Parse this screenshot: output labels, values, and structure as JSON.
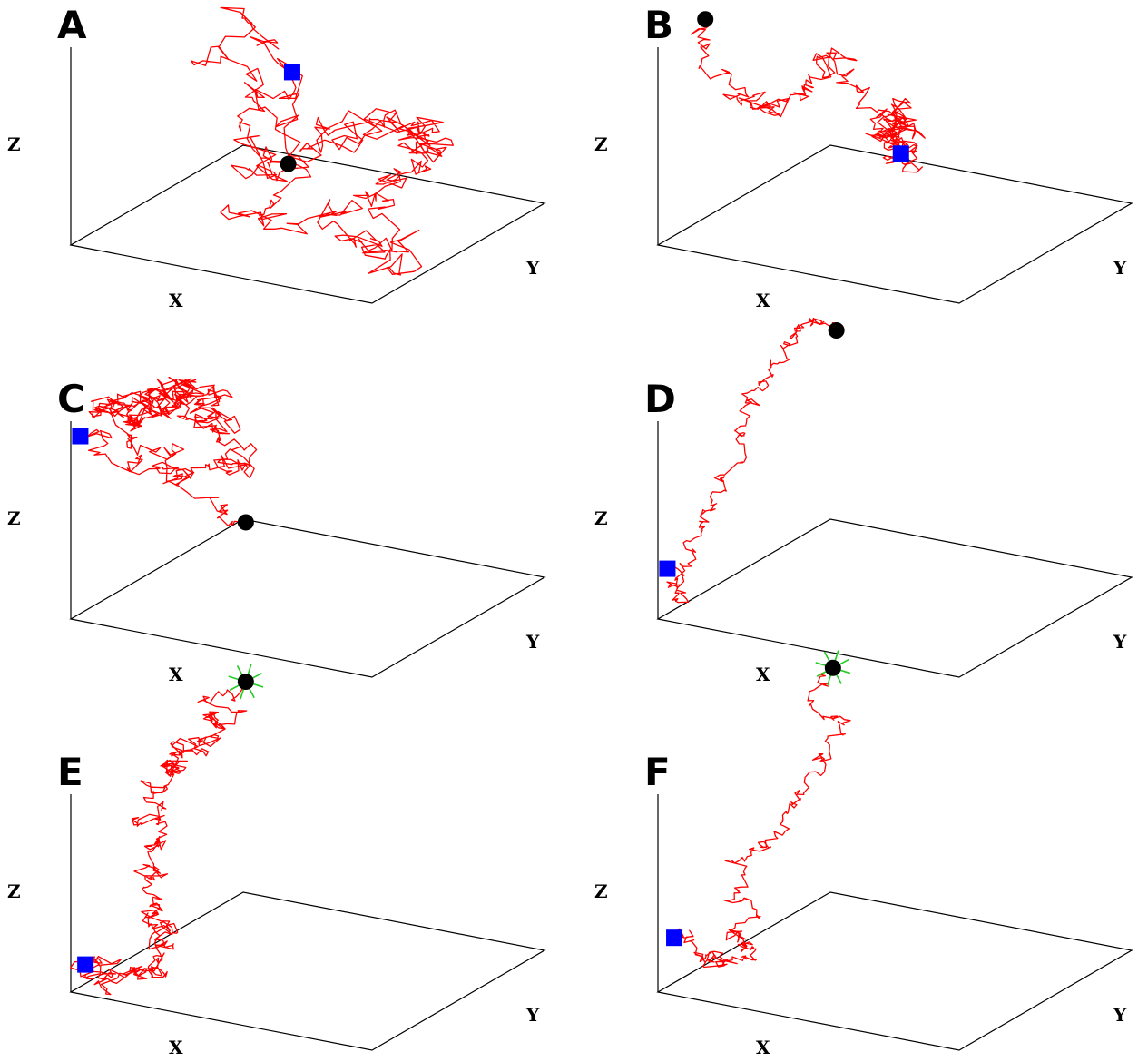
{
  "axes": {
    "x": "X",
    "y": "Y",
    "z": "Z"
  },
  "chart_data": {
    "type": "line",
    "projection": "3d",
    "title": "",
    "panels": [
      {
        "label": "A",
        "start_marker": "circle",
        "end_marker": "square",
        "start_color": "#000000",
        "end_color": "#0000ff",
        "line_color": "#ff0000",
        "start": [
          0.55,
          0.3,
          0.42
        ],
        "end": [
          0.42,
          0.55,
          0.72
        ],
        "path": [
          [
            0.4,
            0.46,
            0.3
          ],
          [
            0.26,
            0.54,
            0.95
          ],
          [
            0.55,
            0.37,
            0.45
          ],
          [
            0.58,
            0.74,
            0.4
          ],
          [
            0.62,
            0.82,
            0.3
          ],
          [
            0.82,
            0.62,
            0.4
          ],
          [
            0.7,
            0.6,
            0.2
          ],
          [
            0.78,
            0.55,
            -0.2
          ],
          [
            0.62,
            0.42,
            0.2
          ],
          [
            0.45,
            0.32,
            0.1
          ]
        ],
        "walk_steps": 420,
        "roughness": 0.05,
        "seed": 11,
        "show_flare": false
      },
      {
        "label": "B",
        "start_marker": "circle",
        "end_marker": "square",
        "start_color": "#000000",
        "end_color": "#0000ff",
        "line_color": "#ff0000",
        "start": [
          0.1,
          0.1,
          1.12
        ],
        "end": [
          0.28,
          0.92,
          0.08
        ],
        "path": [
          [
            0.22,
            0.1,
            0.72
          ],
          [
            0.28,
            0.28,
            0.7
          ],
          [
            0.3,
            0.52,
            0.8
          ],
          [
            0.42,
            0.6,
            0.48
          ],
          [
            0.48,
            0.58,
            0.22
          ],
          [
            0.36,
            0.68,
            0.4
          ],
          [
            0.32,
            0.8,
            0.35
          ],
          [
            0.3,
            0.86,
            0.2
          ]
        ],
        "walk_steps": 360,
        "roughness": 0.03,
        "seed": 23,
        "show_flare": false
      },
      {
        "label": "C",
        "start_marker": "circle",
        "end_marker": "square",
        "start_color": "#000000",
        "end_color": "#0000ff",
        "line_color": "#ff0000",
        "start": [
          0.02,
          0.98,
          0.0
        ],
        "end": [
          0.02,
          0.02,
          0.92
        ],
        "path": [
          [
            0.02,
            0.14,
            0.98
          ],
          [
            0.02,
            0.3,
            0.9
          ],
          [
            0.02,
            0.45,
            0.9
          ],
          [
            0.02,
            0.56,
            0.82
          ],
          [
            0.02,
            0.7,
            0.76
          ],
          [
            0.02,
            0.82,
            0.64
          ],
          [
            0.02,
            0.9,
            0.3
          ]
        ],
        "walk_steps": 520,
        "roughness": 0.035,
        "seed": 37,
        "show_flare": false
      },
      {
        "label": "D",
        "start_marker": "circle",
        "end_marker": "square",
        "start_color": "#000000",
        "end_color": "#0000ff",
        "line_color": "#ff0000",
        "start": [
          0.02,
          1.0,
          0.96
        ],
        "end": [
          0.02,
          0.02,
          0.25
        ],
        "path": [
          [
            0.02,
            0.78,
            1.1
          ],
          [
            0.02,
            0.62,
            1.0
          ],
          [
            0.02,
            0.5,
            0.78
          ],
          [
            0.02,
            0.35,
            0.55
          ],
          [
            0.02,
            0.22,
            0.35
          ],
          [
            0.02,
            0.08,
            0.05
          ]
        ],
        "walk_steps": 220,
        "roughness": 0.018,
        "seed": 41,
        "show_flare": false
      },
      {
        "label": "E",
        "start_marker": "circle",
        "end_marker": "square",
        "start_color": "#000000",
        "end_color": "#0000ff",
        "line_color": "#ff0000",
        "start": [
          0.02,
          0.98,
          1.08
        ],
        "end": [
          0.02,
          0.05,
          0.12
        ],
        "path": [
          [
            0.02,
            0.7,
            0.92
          ],
          [
            0.02,
            0.52,
            0.85
          ],
          [
            0.02,
            0.48,
            0.55
          ],
          [
            0.05,
            0.38,
            0.2
          ],
          [
            0.15,
            0.28,
            0.1
          ],
          [
            0.05,
            0.12,
            0.02
          ]
        ],
        "walk_steps": 480,
        "roughness": 0.028,
        "seed": 53,
        "show_flare": true
      },
      {
        "label": "F",
        "start_marker": "circle",
        "end_marker": "square",
        "start_color": "#000000",
        "end_color": "#0000ff",
        "line_color": "#ff0000",
        "start": [
          0.02,
          0.98,
          1.15
        ],
        "end": [
          0.02,
          0.06,
          0.25
        ],
        "path": [
          [
            0.02,
            0.95,
            0.82
          ],
          [
            0.02,
            0.72,
            0.55
          ],
          [
            0.02,
            0.48,
            0.4
          ],
          [
            0.05,
            0.4,
            0.12
          ],
          [
            0.1,
            0.32,
            0.05
          ],
          [
            0.05,
            0.18,
            0.05
          ]
        ],
        "walk_steps": 280,
        "roughness": 0.02,
        "seed": 67,
        "show_flare": true
      }
    ],
    "grid": false,
    "legend": "none"
  }
}
